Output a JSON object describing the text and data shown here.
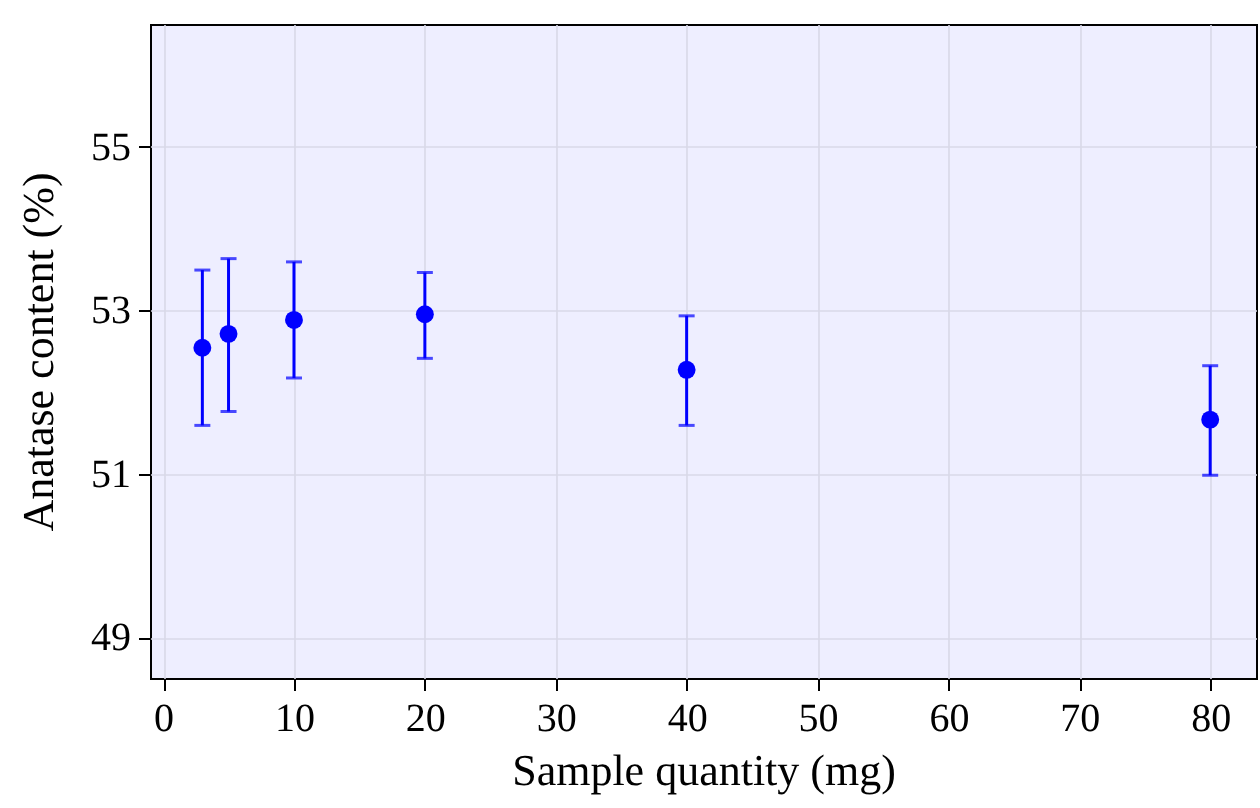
{
  "chart_data": {
    "type": "scatter",
    "xlabel": "Sample quantity (mg)",
    "ylabel": "Anatase content (%)",
    "x": [
      3,
      5,
      10,
      20,
      40,
      80
    ],
    "series": [
      {
        "color": "#0000ff",
        "values": [
          52.54,
          52.71,
          52.88,
          52.95,
          52.27,
          51.66
        ],
        "errors": [
          [
            51.59,
            53.49
          ],
          [
            51.76,
            53.63
          ],
          [
            52.17,
            53.59
          ],
          [
            52.41,
            53.46
          ],
          [
            51.59,
            52.93
          ],
          [
            50.98,
            52.32
          ]
        ]
      }
    ],
    "xlim": [
      -1,
      83.5
    ],
    "ylim": [
      48.5,
      56.5
    ],
    "xticks": [
      0,
      10,
      20,
      30,
      40,
      50,
      60,
      70,
      80
    ],
    "yticks": [
      49,
      51,
      53,
      55
    ],
    "grid": true,
    "marker": "circle"
  }
}
